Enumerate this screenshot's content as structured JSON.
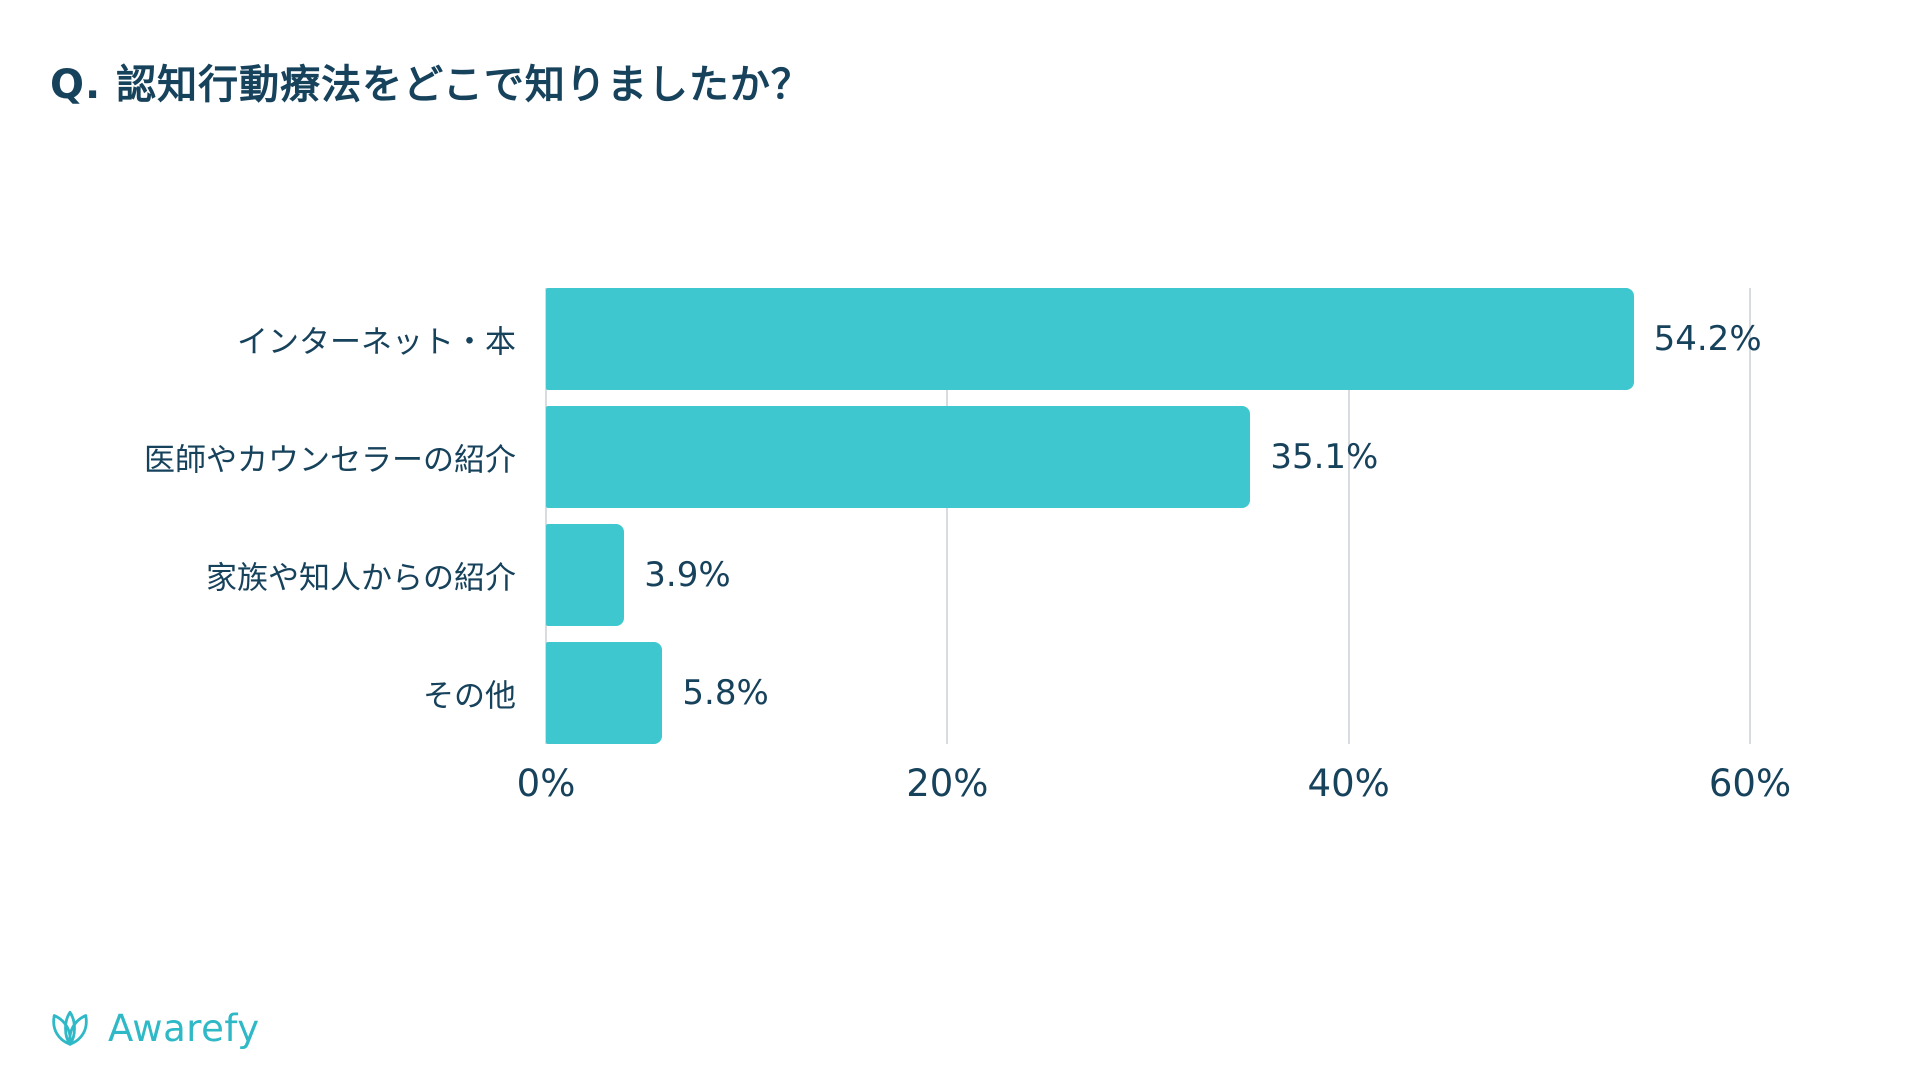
{
  "title": "Q. 認知行動療法をどこで知りましたか？",
  "logo": {
    "text": "Awarefy"
  },
  "colors": {
    "bar": "#3ec7cf",
    "ink": "#17425c",
    "grid": "#d8dce1",
    "accent": "#2fb9c7"
  },
  "chart_data": {
    "type": "bar",
    "orientation": "horizontal",
    "title": "Q. 認知行動療法をどこで知りましたか？",
    "categories": [
      "インターネット・本",
      "医師やカウンセラーの紹介",
      "家族や知人からの紹介",
      "その他"
    ],
    "values": [
      54.2,
      35.1,
      3.9,
      5.8
    ],
    "value_labels": [
      "54.2%",
      "35.1%",
      "3.9%",
      "5.8%"
    ],
    "x_ticks": [
      "0%",
      "20%",
      "40%",
      "60%"
    ],
    "xlim": [
      0,
      60
    ],
    "grid": true,
    "legend": "none",
    "source_brand": "Awarefy"
  }
}
